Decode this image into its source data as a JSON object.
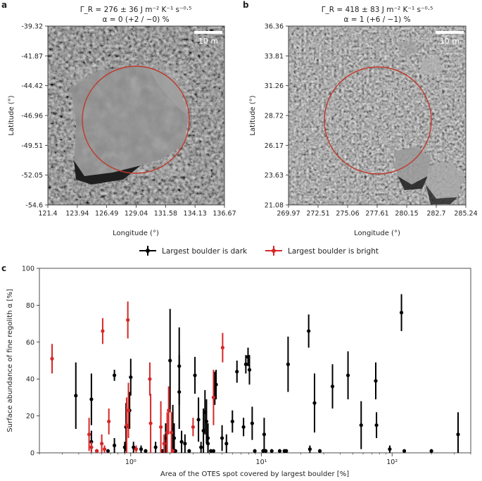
{
  "panels": {
    "a": {
      "letter": "a",
      "title1": "Γ_R = 276 ± 36 J m⁻² K⁻¹ s⁻⁰·⁵",
      "title2": "α = 0 (+2 / −0) %",
      "scale_bar": "10 m",
      "xlabel": "Longitude (°)",
      "ylabel": "Latitude (°)",
      "xticks": [
        "121.4",
        "123.94",
        "126.49",
        "129.04",
        "131.58",
        "134.13",
        "136.67"
      ],
      "yticks": [
        "-39.32",
        "-41.87",
        "-44.42",
        "-46.96",
        "-49.51",
        "-52.05",
        "-54.6"
      ]
    },
    "b": {
      "letter": "b",
      "title1": "Γ_R = 418 ± 83 J m⁻² K⁻¹ s⁻⁰·⁵",
      "title2": "α = 1 (+6 / −1) %",
      "scale_bar": "10 m",
      "xlabel": "Longitude (°)",
      "ylabel": "Latitude (°)",
      "xticks": [
        "269.97",
        "272.51",
        "275.06",
        "277.61",
        "280.15",
        "282.7",
        "285.24"
      ],
      "yticks": [
        "36.36",
        "33.81",
        "31.26",
        "28.72",
        "26.17",
        "23.63",
        "21.08"
      ]
    }
  },
  "legend": {
    "dark": "Largest boulder is dark",
    "bright": "Largest boulder is bright"
  },
  "colors": {
    "dark": "#000000",
    "bright": "#d62728",
    "circle": "#c0392b"
  },
  "chart_data": {
    "letter": "c",
    "type": "scatter",
    "xscale": "log",
    "xlim": [
      0.2,
      400
    ],
    "ylim": [
      0,
      100
    ],
    "xlabel": "Area of the OTES spot covered by largest boulder [%]",
    "ylabel": "Surface abundance of fine regolith α [%]",
    "xtick_labels": [
      "10⁰",
      "10¹",
      "10²"
    ],
    "ytick_labels": [
      "0",
      "20",
      "40",
      "60",
      "80",
      "100"
    ],
    "series": [
      {
        "name": "Largest boulder is dark",
        "points": [
          [
            0.38,
            31,
            18,
            18
          ],
          [
            0.5,
            29,
            14,
            14
          ],
          [
            0.5,
            6,
            6,
            6
          ],
          [
            0.55,
            1,
            1,
            1
          ],
          [
            0.67,
            1,
            1,
            1
          ],
          [
            0.75,
            42,
            3,
            3
          ],
          [
            0.75,
            4,
            4,
            4
          ],
          [
            0.9,
            3,
            3,
            3
          ],
          [
            0.92,
            14,
            13,
            13
          ],
          [
            0.98,
            23,
            10,
            10
          ],
          [
            1.0,
            41,
            10,
            10
          ],
          [
            1.05,
            3,
            3,
            3
          ],
          [
            1.2,
            2,
            2,
            2
          ],
          [
            1.3,
            1,
            1,
            1
          ],
          [
            1.55,
            3,
            3,
            3
          ],
          [
            1.75,
            1,
            1,
            1
          ],
          [
            1.85,
            8,
            8,
            8
          ],
          [
            2.0,
            50,
            28,
            28
          ],
          [
            2.1,
            13,
            13,
            13
          ],
          [
            2.15,
            8,
            8,
            8
          ],
          [
            2.2,
            1,
            1,
            1
          ],
          [
            2.35,
            33,
            20,
            20
          ],
          [
            2.35,
            47,
            21,
            21
          ],
          [
            2.45,
            6,
            6,
            6
          ],
          [
            2.6,
            5,
            5,
            5
          ],
          [
            2.8,
            1,
            1,
            1
          ],
          [
            3.1,
            42,
            10,
            10
          ],
          [
            3.3,
            18,
            12,
            12
          ],
          [
            3.45,
            3,
            3,
            3
          ],
          [
            3.6,
            12,
            12,
            12
          ],
          [
            3.7,
            22,
            12,
            12
          ],
          [
            3.8,
            17,
            12,
            12
          ],
          [
            3.9,
            5,
            5,
            5
          ],
          [
            3.9,
            8,
            8,
            8
          ],
          [
            4.1,
            1,
            1,
            1
          ],
          [
            4.3,
            1,
            1,
            1
          ],
          [
            4.4,
            35,
            9,
            9
          ],
          [
            4.5,
            37,
            8,
            8
          ],
          [
            5.0,
            8,
            7,
            7
          ],
          [
            5.4,
            5,
            5,
            5
          ],
          [
            6.0,
            17,
            6,
            6
          ],
          [
            6.5,
            44,
            6,
            6
          ],
          [
            7.3,
            14,
            5,
            5
          ],
          [
            7.6,
            48,
            5,
            5
          ],
          [
            7.9,
            52,
            5,
            5
          ],
          [
            8.1,
            45,
            8,
            8
          ],
          [
            8.5,
            16,
            9,
            9
          ],
          [
            8.9,
            1,
            1,
            1
          ],
          [
            10.3,
            1,
            1,
            1
          ],
          [
            10.5,
            10,
            9,
            9
          ],
          [
            10.8,
            1,
            1,
            1
          ],
          [
            12.0,
            1,
            1,
            1
          ],
          [
            13.8,
            1,
            1,
            1
          ],
          [
            15.0,
            1,
            1,
            1
          ],
          [
            15.5,
            1,
            1,
            1
          ],
          [
            16.0,
            48,
            15,
            15
          ],
          [
            23.0,
            66,
            9,
            9
          ],
          [
            23.5,
            2,
            2,
            2
          ],
          [
            25.5,
            27,
            16,
            16
          ],
          [
            28.0,
            1,
            1,
            1
          ],
          [
            35.0,
            36,
            12,
            12
          ],
          [
            46.0,
            42,
            13,
            13
          ],
          [
            58.0,
            15,
            13,
            13
          ],
          [
            75.0,
            39,
            10,
            10
          ],
          [
            76.0,
            15,
            7,
            7
          ],
          [
            96.0,
            2,
            2,
            2
          ],
          [
            118.0,
            76,
            10,
            10
          ],
          [
            124.0,
            1,
            1,
            1
          ],
          [
            200.0,
            1,
            1,
            1
          ],
          [
            320.0,
            10,
            12,
            10
          ]
        ]
      },
      {
        "name": "Largest boulder is bright",
        "points": [
          [
            0.25,
            51,
            8,
            8
          ],
          [
            0.48,
            10,
            9,
            9
          ],
          [
            0.5,
            3,
            3,
            3
          ],
          [
            0.55,
            1,
            1,
            1
          ],
          [
            0.6,
            5,
            5,
            5
          ],
          [
            0.61,
            66,
            7,
            7
          ],
          [
            0.63,
            2,
            2,
            2
          ],
          [
            0.68,
            17,
            7,
            7
          ],
          [
            0.93,
            15,
            15,
            15
          ],
          [
            0.95,
            72,
            10,
            10
          ],
          [
            0.96,
            23,
            15,
            15
          ],
          [
            1.1,
            2,
            2,
            2
          ],
          [
            1.4,
            40,
            9,
            9
          ],
          [
            1.42,
            16,
            16,
            16
          ],
          [
            1.7,
            14,
            14,
            14
          ],
          [
            1.8,
            5,
            5,
            5
          ],
          [
            1.9,
            11,
            11,
            11
          ],
          [
            1.95,
            23,
            13,
            13
          ],
          [
            2.05,
            11,
            11,
            11
          ],
          [
            2.1,
            1,
            1,
            1
          ],
          [
            3.0,
            14,
            5,
            5
          ],
          [
            4.3,
            30,
            15,
            15
          ],
          [
            5.05,
            57,
            8,
            8
          ]
        ]
      }
    ]
  }
}
